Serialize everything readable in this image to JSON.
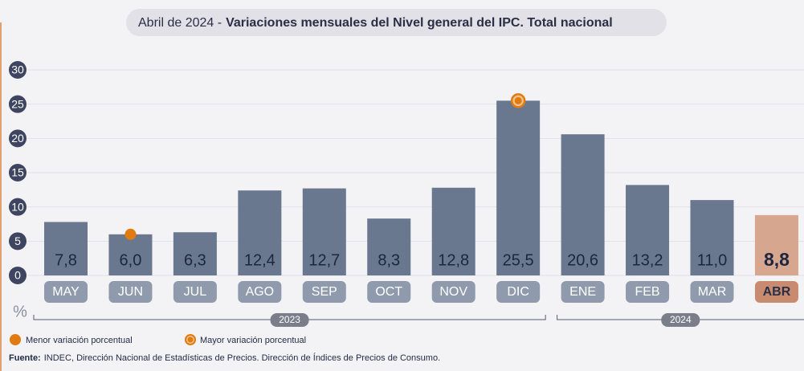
{
  "chart_data": {
    "type": "bar",
    "title_date": "Abril de 2024 -",
    "title": "Variaciones mensuales del Nivel general del IPC. Total nacional",
    "y_label": "%",
    "categories": [
      "MAY",
      "JUN",
      "JUL",
      "AGO",
      "SEP",
      "OCT",
      "NOV",
      "DIC",
      "ENE",
      "FEB",
      "MAR",
      "ABR"
    ],
    "values": [
      7.8,
      6.0,
      6.3,
      12.4,
      12.7,
      8.3,
      12.8,
      25.5,
      20.6,
      13.2,
      11.0,
      8.8
    ],
    "value_labels": [
      "7,8",
      "6,0",
      "6,3",
      "12,4",
      "12,7",
      "8,3",
      "12,8",
      "25,5",
      "20,6",
      "13,2",
      "11,0",
      "8,8"
    ],
    "colors": [
      "#69788f",
      "#69788f",
      "#69788f",
      "#69788f",
      "#69788f",
      "#69788f",
      "#69788f",
      "#69788f",
      "#69788f",
      "#69788f",
      "#69788f",
      "#d6a68f"
    ],
    "label_colors": [
      "#8f9aad",
      "#8f9aad",
      "#8f9aad",
      "#8f9aad",
      "#8f9aad",
      "#8f9aad",
      "#8f9aad",
      "#8f9aad",
      "#8f9aad",
      "#8f9aad",
      "#8f9aad",
      "#c98b6f"
    ],
    "ylim": [
      0,
      30
    ],
    "yticks": [
      0,
      5,
      10,
      15,
      20,
      25,
      30
    ],
    "grid": true,
    "groups": [
      {
        "label": "2023",
        "start": 0,
        "end": 7
      },
      {
        "label": "2024",
        "start": 8,
        "end": 11
      }
    ],
    "legend": [
      "Menor variación porcentual",
      "Mayor variación porcentual"
    ],
    "marker_color": "#e07b12",
    "source_label": "Fuente:",
    "source": "INDEC, Dirección Nacional de Estadísticas de Precios. Dirección de Índices de Precios de Consumo."
  }
}
